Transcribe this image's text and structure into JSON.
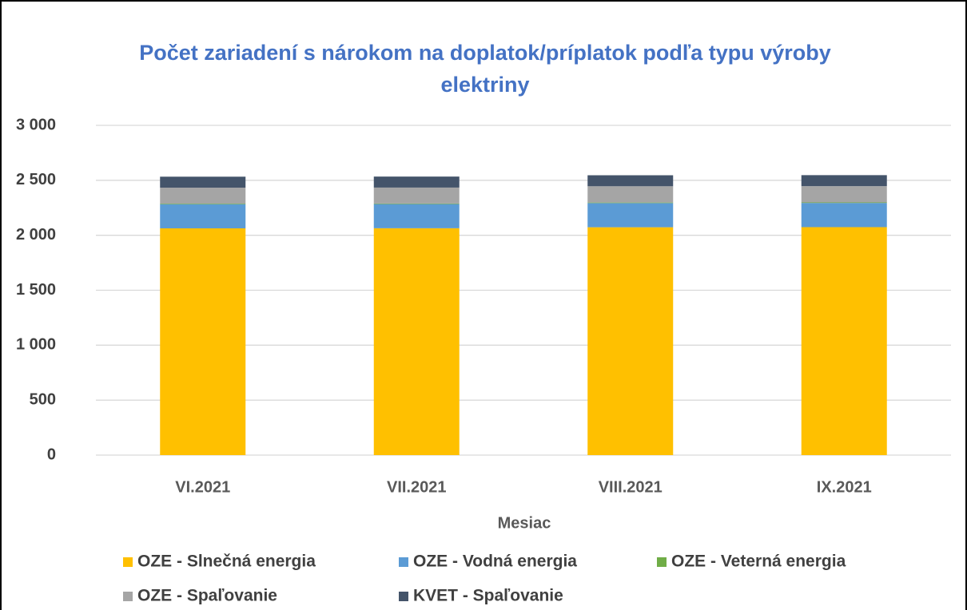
{
  "chart_data": {
    "type": "stacked_bar",
    "title": "Počet zariadení s nárokom na doplatok/príplatok podľa typu výroby elektriny",
    "x_label": "Mesiac",
    "categories": [
      "VI.2021",
      "VII.2021",
      "VIII.2021",
      "IX.2021"
    ],
    "series": [
      {
        "name": "OZE - Slnečná energia",
        "color": "#ffc000",
        "values": [
          2063,
          2064,
          2073,
          2074
        ]
      },
      {
        "name": "OZE - Vodná energia",
        "color": "#5b9bd5",
        "values": [
          220,
          220,
          220,
          220
        ]
      },
      {
        "name": "OZE - Veterná energia",
        "color": "#70ad47",
        "values": [
          5,
          5,
          5,
          5
        ]
      },
      {
        "name": "OZE - Spaľovanie",
        "color": "#a5a5a5",
        "values": [
          145,
          145,
          148,
          148
        ]
      },
      {
        "name": "KVET - Spaľovanie",
        "color": "#44546a",
        "values": [
          100,
          100,
          100,
          100
        ]
      }
    ],
    "ylim": [
      0,
      3000
    ],
    "yticks": [
      0,
      500,
      {
        "value": 1000,
        "label": "1 000"
      },
      {
        "value": 1500,
        "label": "1 500"
      },
      {
        "value": 2000,
        "label": "2 000"
      },
      {
        "value": 2500,
        "label": "2 500"
      },
      {
        "value": 3000,
        "label": "3 000"
      }
    ],
    "grid": true,
    "legend": "bottom"
  }
}
